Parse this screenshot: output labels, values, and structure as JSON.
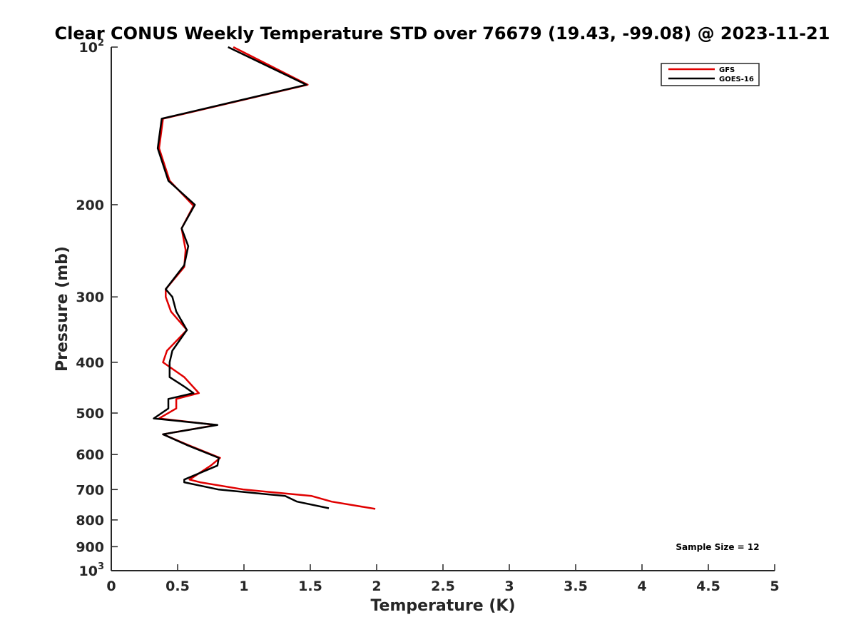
{
  "chart_data": {
    "type": "line",
    "title": "Clear CONUS Weekly Temperature STD over 76679 (19.43, -99.08) @ 2023-11-21",
    "xlabel": "Temperature (K)",
    "ylabel": "Pressure (mb)",
    "xlim": [
      0,
      5
    ],
    "ylim": [
      100,
      1000
    ],
    "y_scale": "log",
    "y_reversed": true,
    "grid": false,
    "legend_position": "top-right",
    "x_ticks": [
      "0",
      "0.5",
      "1",
      "1.5",
      "2",
      "2.5",
      "3",
      "3.5",
      "4",
      "4.5",
      "5"
    ],
    "y_ticks": [
      {
        "value": 100,
        "base": "10",
        "exp": "2"
      },
      {
        "value": 200,
        "label": "200"
      },
      {
        "value": 300,
        "label": "300"
      },
      {
        "value": 400,
        "label": "400"
      },
      {
        "value": 500,
        "label": "500"
      },
      {
        "value": 600,
        "label": "600"
      },
      {
        "value": 700,
        "label": "700"
      },
      {
        "value": 800,
        "label": "800"
      },
      {
        "value": 900,
        "label": "900"
      },
      {
        "value": 1000,
        "base": "10",
        "exp": "3"
      }
    ],
    "annotation": "Sample Size = 12",
    "series": [
      {
        "name": "GFS",
        "color": "#e00000",
        "x": [
          0.92,
          1.48,
          0.39,
          0.36,
          0.44,
          0.62,
          0.53,
          0.56,
          0.55,
          0.41,
          0.41,
          0.45,
          0.57,
          0.42,
          0.39,
          0.55,
          0.66,
          0.49,
          0.49,
          0.36,
          0.79,
          0.39,
          0.59,
          0.82,
          0.75,
          0.59,
          0.67,
          1.0,
          1.51,
          1.66,
          1.99
        ],
        "y": [
          100,
          118,
          137,
          156,
          180,
          201,
          222,
          244,
          263,
          290,
          300,
          320,
          347,
          380,
          400,
          427,
          458,
          470,
          490,
          512,
          527,
          549,
          577,
          609,
          630,
          670,
          678,
          700,
          720,
          738,
          762
        ]
      },
      {
        "name": "GOES-16",
        "color": "#000000",
        "x": [
          0.88,
          1.47,
          0.38,
          0.35,
          0.43,
          0.63,
          0.53,
          0.58,
          0.55,
          0.41,
          0.46,
          0.49,
          0.57,
          0.46,
          0.44,
          0.44,
          0.55,
          0.62,
          0.43,
          0.43,
          0.32,
          0.8,
          0.39,
          0.58,
          0.81,
          0.8,
          0.55,
          0.55,
          0.81,
          1.31,
          1.4,
          1.64
        ],
        "y": [
          100,
          118,
          137,
          156,
          180,
          200,
          222,
          240,
          261,
          290,
          300,
          320,
          347,
          380,
          400,
          427,
          445,
          458,
          470,
          490,
          512,
          527,
          549,
          577,
          609,
          630,
          670,
          678,
          700,
          720,
          738,
          760
        ]
      }
    ]
  }
}
